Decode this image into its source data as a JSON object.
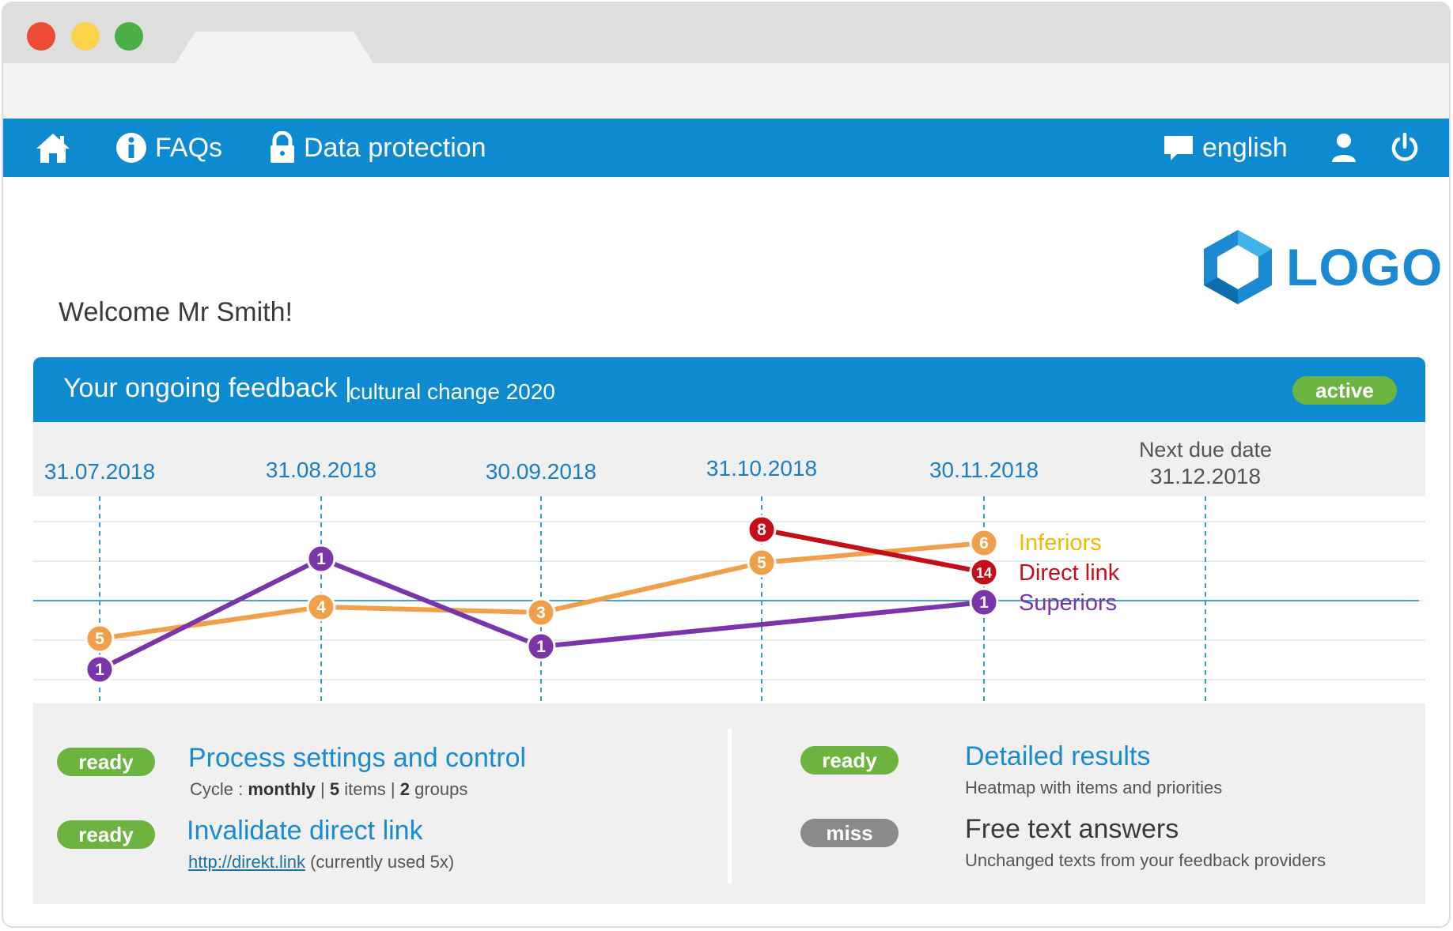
{
  "navbar": {
    "faqs": "FAQs",
    "data_protection": "Data protection",
    "language": "english",
    "icons": [
      "home-icon",
      "info-icon",
      "lock-icon",
      "speech-bubble-icon",
      "user-icon",
      "power-icon"
    ]
  },
  "logo": {
    "text": "LOGO"
  },
  "welcome": "Welcome Mr Smith!",
  "feedback": {
    "title": "Your ongoing feedback |",
    "subtitle": "cultural change 2020",
    "status": "active"
  },
  "chart_data": {
    "type": "line",
    "categories": [
      "31.07.2018",
      "31.08.2018",
      "30.09.2018",
      "31.10.2018",
      "30.11.2018"
    ],
    "next_due": {
      "label": "Next due date",
      "date": "31.12.2018"
    },
    "series": [
      {
        "name": "Inferiors",
        "color": "#f0a04b",
        "label_color": "#f5b800",
        "values": [
          5,
          4,
          3,
          5,
          6
        ]
      },
      {
        "name": "Direct link",
        "color": "#c40f1a",
        "label_color": "#c40f1a",
        "values": [
          null,
          null,
          null,
          8,
          14
        ]
      },
      {
        "name": "Superiors",
        "color": "#7b35a8",
        "label_color": "#7b35a8",
        "values": [
          1,
          1,
          1,
          null,
          1
        ]
      }
    ],
    "superiors_points": [
      {
        "category": "31.07.2018",
        "value": 1
      },
      {
        "category": "31.08.2018",
        "value": 1
      },
      {
        "category": "30.09.2018",
        "value": 1
      },
      {
        "category": "30.11.2018",
        "value": 1
      }
    ],
    "grid": true
  },
  "tasks": {
    "process": {
      "badge": "ready",
      "title": "Process settings and control",
      "cycle_label": "Cycle : ",
      "cycle_value": "monthly",
      "sep1": " | ",
      "items_count": "5",
      "items_label": " items | ",
      "groups_count": "2",
      "groups_label": " groups"
    },
    "invalidate": {
      "badge": "ready",
      "title": "Invalidate direct link",
      "link": "http://direkt.link",
      "note": " (currently used 5x)"
    },
    "results": {
      "badge": "ready",
      "title": "Detailed results",
      "desc": "Heatmap with items and priorities"
    },
    "freetext": {
      "badge": "miss",
      "title": "Free text answers",
      "desc": "Unchanged texts from your feedback providers"
    }
  }
}
